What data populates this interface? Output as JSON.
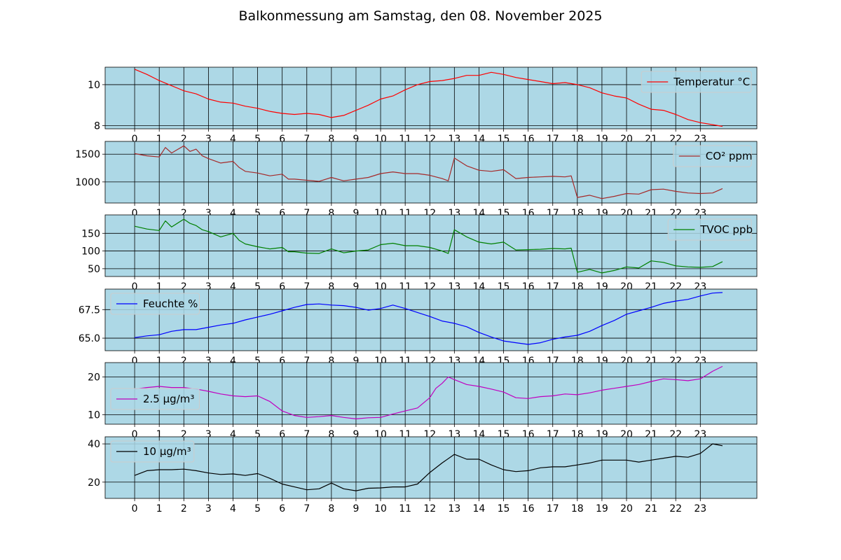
{
  "title": "Balkonmessung am Samstag, den 08. November 2025",
  "colors": {
    "plot_background": "#add8e6",
    "grid": "#000000",
    "legend_background": "#add8e6",
    "legend_border": "#cccccc"
  },
  "chart_data": [
    {
      "type": "line",
      "title": "",
      "xlabel": "",
      "ylabel": "",
      "xlim": [
        -1.2,
        25.3
      ],
      "ylim": [
        7.85,
        10.85
      ],
      "x_ticks": [
        0,
        1,
        2,
        3,
        4,
        5,
        6,
        7,
        8,
        9,
        10,
        11,
        12,
        13,
        14,
        15,
        16,
        17,
        18,
        19,
        20,
        21,
        22,
        23
      ],
      "x_tick_labels": [
        "0",
        "1",
        "2",
        "3",
        "4",
        "5",
        "6",
        "7",
        "8",
        "9",
        "10",
        "11",
        "12",
        "13",
        "14",
        "15",
        "16",
        "17",
        "18",
        "19",
        "20",
        "21",
        "22",
        "23"
      ],
      "y_ticks": [
        8,
        10
      ],
      "y_tick_labels": [
        "8",
        "10"
      ],
      "grid": true,
      "legend": "top-right",
      "series": [
        {
          "name": "Temperatur °C",
          "color": "#ff0000",
          "x": [
            0,
            0.5,
            1,
            1.5,
            2,
            2.5,
            3,
            3.5,
            4,
            4.5,
            5,
            5.5,
            6,
            6.5,
            7,
            7.5,
            8,
            8.5,
            9,
            9.5,
            10,
            10.5,
            11,
            11.5,
            12,
            12.5,
            13,
            13.5,
            14,
            14.5,
            15,
            15.5,
            16,
            16.5,
            17,
            17.5,
            18,
            18.5,
            19,
            19.5,
            20,
            20.5,
            21,
            21.5,
            22,
            22.5,
            23,
            23.5,
            23.9
          ],
          "y": [
            10.75,
            10.5,
            10.2,
            9.95,
            9.7,
            9.55,
            9.3,
            9.15,
            9.1,
            8.95,
            8.85,
            8.7,
            8.6,
            8.55,
            8.6,
            8.55,
            8.4,
            8.5,
            8.75,
            9.0,
            9.3,
            9.45,
            9.75,
            10.0,
            10.15,
            10.2,
            10.3,
            10.45,
            10.45,
            10.6,
            10.5,
            10.35,
            10.25,
            10.15,
            10.05,
            10.1,
            10.0,
            9.85,
            9.6,
            9.45,
            9.35,
            9.05,
            8.8,
            8.75,
            8.55,
            8.3,
            8.15,
            8.05,
            7.97
          ]
        }
      ]
    },
    {
      "type": "line",
      "title": "",
      "xlabel": "",
      "ylabel": "",
      "xlim": [
        -1.2,
        25.3
      ],
      "ylim": [
        620,
        1730
      ],
      "x_ticks": [
        0,
        1,
        2,
        3,
        4,
        5,
        6,
        7,
        8,
        9,
        10,
        11,
        12,
        13,
        14,
        15,
        16,
        17,
        18,
        19,
        20,
        21,
        22,
        23
      ],
      "x_tick_labels": [
        "0",
        "1",
        "2",
        "3",
        "4",
        "5",
        "6",
        "7",
        "8",
        "9",
        "10",
        "11",
        "12",
        "13",
        "14",
        "15",
        "16",
        "17",
        "18",
        "19",
        "20",
        "21",
        "22",
        "23"
      ],
      "y_ticks": [
        1000,
        1500
      ],
      "y_tick_labels": [
        "1000",
        "1500"
      ],
      "grid": true,
      "legend": "top-right",
      "series": [
        {
          "name": "CO² ppm",
          "color": "#a52a2a",
          "x": [
            0,
            0.5,
            1,
            1.25,
            1.5,
            2,
            2.25,
            2.5,
            2.75,
            3,
            3.5,
            4,
            4.25,
            4.5,
            5,
            5.5,
            6,
            6.25,
            6.5,
            7,
            7.5,
            8,
            8.5,
            9,
            9.5,
            10,
            10.5,
            11,
            11.5,
            12,
            12.5,
            12.75,
            13,
            13.5,
            14,
            14.5,
            15,
            15.5,
            16,
            16.5,
            17,
            17.5,
            17.75,
            18,
            18.5,
            19,
            19.5,
            20,
            20.5,
            21,
            21.5,
            22,
            22.5,
            23,
            23.5,
            23.9
          ],
          "y": [
            1510,
            1470,
            1450,
            1620,
            1520,
            1650,
            1550,
            1590,
            1470,
            1420,
            1340,
            1370,
            1260,
            1190,
            1160,
            1110,
            1140,
            1050,
            1050,
            1030,
            1010,
            1080,
            1020,
            1050,
            1080,
            1150,
            1180,
            1150,
            1150,
            1120,
            1060,
            1020,
            1430,
            1290,
            1210,
            1190,
            1220,
            1060,
            1080,
            1090,
            1100,
            1090,
            1110,
            720,
            760,
            700,
            740,
            790,
            780,
            860,
            870,
            830,
            800,
            790,
            800,
            880
          ]
        }
      ]
    },
    {
      "type": "line",
      "title": "",
      "xlabel": "",
      "ylabel": "",
      "xlim": [
        -1.2,
        25.3
      ],
      "ylim": [
        28,
        202
      ],
      "x_ticks": [
        0,
        1,
        2,
        3,
        4,
        5,
        6,
        7,
        8,
        9,
        10,
        11,
        12,
        13,
        14,
        15,
        16,
        17,
        18,
        19,
        20,
        21,
        22,
        23
      ],
      "x_tick_labels": [
        "0",
        "1",
        "2",
        "3",
        "4",
        "5",
        "6",
        "7",
        "8",
        "9",
        "10",
        "11",
        "12",
        "13",
        "14",
        "15",
        "16",
        "17",
        "18",
        "19",
        "20",
        "21",
        "22",
        "23"
      ],
      "y_ticks": [
        50,
        100,
        150
      ],
      "y_tick_labels": [
        "50",
        "100",
        "150"
      ],
      "grid": true,
      "legend": "top-right",
      "series": [
        {
          "name": "TVOC ppb",
          "color": "#008000",
          "x": [
            0,
            0.5,
            1,
            1.25,
            1.5,
            2,
            2.25,
            2.5,
            2.75,
            3,
            3.5,
            4,
            4.25,
            4.5,
            5,
            5.5,
            6,
            6.25,
            6.5,
            7,
            7.5,
            8,
            8.5,
            9,
            9.5,
            10,
            10.5,
            11,
            11.5,
            12,
            12.5,
            12.75,
            13,
            13.5,
            14,
            14.5,
            15,
            15.5,
            16,
            16.5,
            17,
            17.5,
            17.75,
            18,
            18.5,
            19,
            19.5,
            20,
            20.5,
            21,
            21.5,
            22,
            22.5,
            23,
            23.5,
            23.9
          ],
          "y": [
            170,
            162,
            158,
            185,
            168,
            190,
            178,
            172,
            160,
            155,
            140,
            150,
            130,
            120,
            112,
            106,
            110,
            98,
            98,
            94,
            93,
            106,
            95,
            100,
            103,
            118,
            122,
            115,
            115,
            110,
            100,
            93,
            160,
            140,
            125,
            120,
            125,
            103,
            104,
            105,
            107,
            106,
            108,
            40,
            48,
            38,
            45,
            55,
            52,
            72,
            68,
            58,
            55,
            54,
            56,
            70
          ]
        }
      ]
    },
    {
      "type": "line",
      "title": "",
      "xlabel": "",
      "ylabel": "",
      "xlim": [
        -1.2,
        25.3
      ],
      "ylim": [
        63.9,
        69.3
      ],
      "x_ticks": [
        0,
        1,
        2,
        3,
        4,
        5,
        6,
        7,
        8,
        9,
        10,
        11,
        12,
        13,
        14,
        15,
        16,
        17,
        18,
        19,
        20,
        21,
        22,
        23
      ],
      "x_tick_labels": [
        "0",
        "1",
        "2",
        "3",
        "4",
        "5",
        "6",
        "7",
        "8",
        "9",
        "10",
        "11",
        "12",
        "13",
        "14",
        "15",
        "16",
        "17",
        "18",
        "19",
        "20",
        "21",
        "22",
        "23"
      ],
      "y_ticks": [
        65.0,
        67.5
      ],
      "y_tick_labels": [
        "65.0",
        "67.5"
      ],
      "grid": true,
      "legend": "top-left",
      "series": [
        {
          "name": "Feuchte %",
          "color": "#0000ff",
          "x": [
            0,
            0.5,
            1,
            1.5,
            2,
            2.5,
            3,
            3.5,
            4,
            4.5,
            5,
            5.5,
            6,
            6.5,
            7,
            7.5,
            8,
            8.5,
            9,
            9.5,
            10,
            10.5,
            11,
            11.5,
            12,
            12.5,
            13,
            13.5,
            14,
            14.5,
            15,
            15.5,
            16,
            16.5,
            17,
            17.5,
            18,
            18.5,
            19,
            19.5,
            20,
            20.5,
            21,
            21.5,
            22,
            22.5,
            23,
            23.5,
            23.9
          ],
          "y": [
            65.05,
            65.2,
            65.3,
            65.6,
            65.75,
            65.75,
            65.95,
            66.15,
            66.3,
            66.6,
            66.85,
            67.1,
            67.4,
            67.7,
            67.95,
            68.0,
            67.9,
            67.85,
            67.7,
            67.45,
            67.6,
            67.9,
            67.6,
            67.25,
            66.9,
            66.5,
            66.3,
            66.0,
            65.5,
            65.1,
            64.75,
            64.6,
            64.45,
            64.6,
            64.9,
            65.1,
            65.25,
            65.6,
            66.1,
            66.55,
            67.1,
            67.4,
            67.7,
            68.05,
            68.25,
            68.4,
            68.7,
            68.95,
            69.0
          ]
        }
      ]
    },
    {
      "type": "line",
      "title": "",
      "xlabel": "",
      "ylabel": "",
      "xlim": [
        -1.2,
        25.3
      ],
      "ylim": [
        7.5,
        23.8
      ],
      "x_ticks": [
        0,
        1,
        2,
        3,
        4,
        5,
        6,
        7,
        8,
        9,
        10,
        11,
        12,
        13,
        14,
        15,
        16,
        17,
        18,
        19,
        20,
        21,
        22,
        23
      ],
      "x_tick_labels": [
        "0",
        "1",
        "2",
        "3",
        "4",
        "5",
        "6",
        "7",
        "8",
        "9",
        "10",
        "11",
        "12",
        "13",
        "14",
        "15",
        "16",
        "17",
        "18",
        "19",
        "20",
        "21",
        "22",
        "23"
      ],
      "y_ticks": [
        10,
        20
      ],
      "y_tick_labels": [
        "10",
        "20"
      ],
      "grid": true,
      "legend": "center-left",
      "series": [
        {
          "name": "2.5 µg/m³",
          "color": "#c000c0",
          "x": [
            0,
            0.5,
            1,
            1.5,
            2,
            2.5,
            3,
            3.5,
            4,
            4.5,
            5,
            5.5,
            6,
            6.5,
            7,
            7.5,
            8,
            8.5,
            9,
            9.5,
            10,
            10.5,
            11,
            11.5,
            12,
            12.25,
            12.5,
            12.75,
            13,
            13.5,
            14,
            14.5,
            15,
            15.5,
            16,
            16.5,
            17,
            17.5,
            18,
            18.5,
            19,
            19.5,
            20,
            20.5,
            21,
            21.5,
            22,
            22.5,
            23,
            23.5,
            23.9
          ],
          "y": [
            16.8,
            17.2,
            17.5,
            17.2,
            17.2,
            16.8,
            16.2,
            15.5,
            15.0,
            14.8,
            15.0,
            13.5,
            11.0,
            9.8,
            9.3,
            9.5,
            9.8,
            9.3,
            8.9,
            9.2,
            9.3,
            10.2,
            11.0,
            11.8,
            14.5,
            17.0,
            18.3,
            20.0,
            19.3,
            18.0,
            17.5,
            16.8,
            16.0,
            14.5,
            14.3,
            14.8,
            15.0,
            15.5,
            15.3,
            15.8,
            16.5,
            17.0,
            17.5,
            18.0,
            18.8,
            19.5,
            19.3,
            19.0,
            19.5,
            21.5,
            22.8
          ]
        }
      ]
    },
    {
      "type": "line",
      "title": "",
      "xlabel": "",
      "ylabel": "",
      "xlim": [
        -1.2,
        25.3
      ],
      "ylim": [
        11.5,
        43.7
      ],
      "x_ticks": [
        0,
        1,
        2,
        3,
        4,
        5,
        6,
        7,
        8,
        9,
        10,
        11,
        12,
        13,
        14,
        15,
        16,
        17,
        18,
        19,
        20,
        21,
        22,
        23
      ],
      "x_tick_labels": [
        "0",
        "1",
        "2",
        "3",
        "4",
        "5",
        "6",
        "7",
        "8",
        "9",
        "10",
        "11",
        "12",
        "13",
        "14",
        "15",
        "16",
        "17",
        "18",
        "19",
        "20",
        "21",
        "22",
        "23"
      ],
      "y_ticks": [
        20,
        40
      ],
      "y_tick_labels": [
        "20",
        "40"
      ],
      "grid": true,
      "legend": "top-left",
      "series": [
        {
          "name": "10 µg/m³",
          "color": "#000000",
          "x": [
            0,
            0.5,
            1,
            1.5,
            2,
            2.5,
            3,
            3.5,
            4,
            4.5,
            5,
            5.5,
            6,
            6.5,
            7,
            7.5,
            8,
            8.5,
            9,
            9.5,
            10,
            10.5,
            11,
            11.5,
            12,
            12.5,
            13,
            13.5,
            14,
            14.5,
            15,
            15.5,
            16,
            16.5,
            17,
            17.5,
            18,
            18.5,
            19,
            19.5,
            20,
            20.5,
            21,
            21.5,
            22,
            22.5,
            23,
            23.5,
            23.9
          ],
          "y": [
            23.5,
            26.0,
            26.5,
            26.5,
            26.8,
            26.0,
            24.8,
            24.0,
            24.3,
            23.5,
            24.5,
            22.0,
            19.0,
            17.5,
            16.0,
            16.5,
            19.5,
            16.5,
            15.5,
            16.8,
            17.0,
            17.5,
            17.5,
            19.0,
            25.0,
            30.0,
            34.5,
            32.0,
            32.0,
            29.0,
            26.5,
            25.5,
            26.0,
            27.5,
            28.0,
            28.0,
            29.0,
            30.0,
            31.5,
            31.5,
            31.5,
            30.5,
            31.5,
            32.5,
            33.5,
            33.0,
            35.0,
            40.0,
            39.0
          ]
        }
      ]
    }
  ]
}
